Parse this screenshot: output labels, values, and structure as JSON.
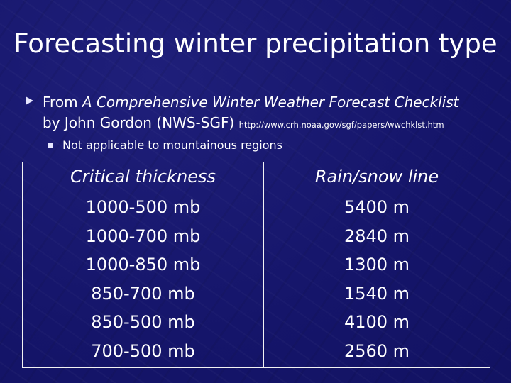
{
  "slide": {
    "title": "Forecasting winter precipitation type"
  },
  "bullet": {
    "prefix": "From ",
    "source_title": "A Comprehensive Winter Weather Forecast Checklist",
    "author": "by John Gordon (NWS-SGF) ",
    "url": "http://www.crh.noaa.gov/sgf/papers/wwchklst.htm"
  },
  "sub_bullet": {
    "text": "Not applicable to mountainous regions"
  },
  "table": {
    "headers": [
      "Critical thickness",
      "Rain/snow line"
    ],
    "rows": [
      [
        "1000-500 mb",
        "5400 m"
      ],
      [
        "1000-700 mb",
        "2840 m"
      ],
      [
        "1000-850 mb",
        "1300 m"
      ],
      [
        "850-700 mb",
        "1540 m"
      ],
      [
        "850-500 mb",
        "4100 m"
      ],
      [
        "700-500 mb",
        "2560 m"
      ]
    ]
  },
  "colors": {
    "background": "#16166b",
    "text": "#ffffff",
    "rule": "#f2f2f2"
  }
}
